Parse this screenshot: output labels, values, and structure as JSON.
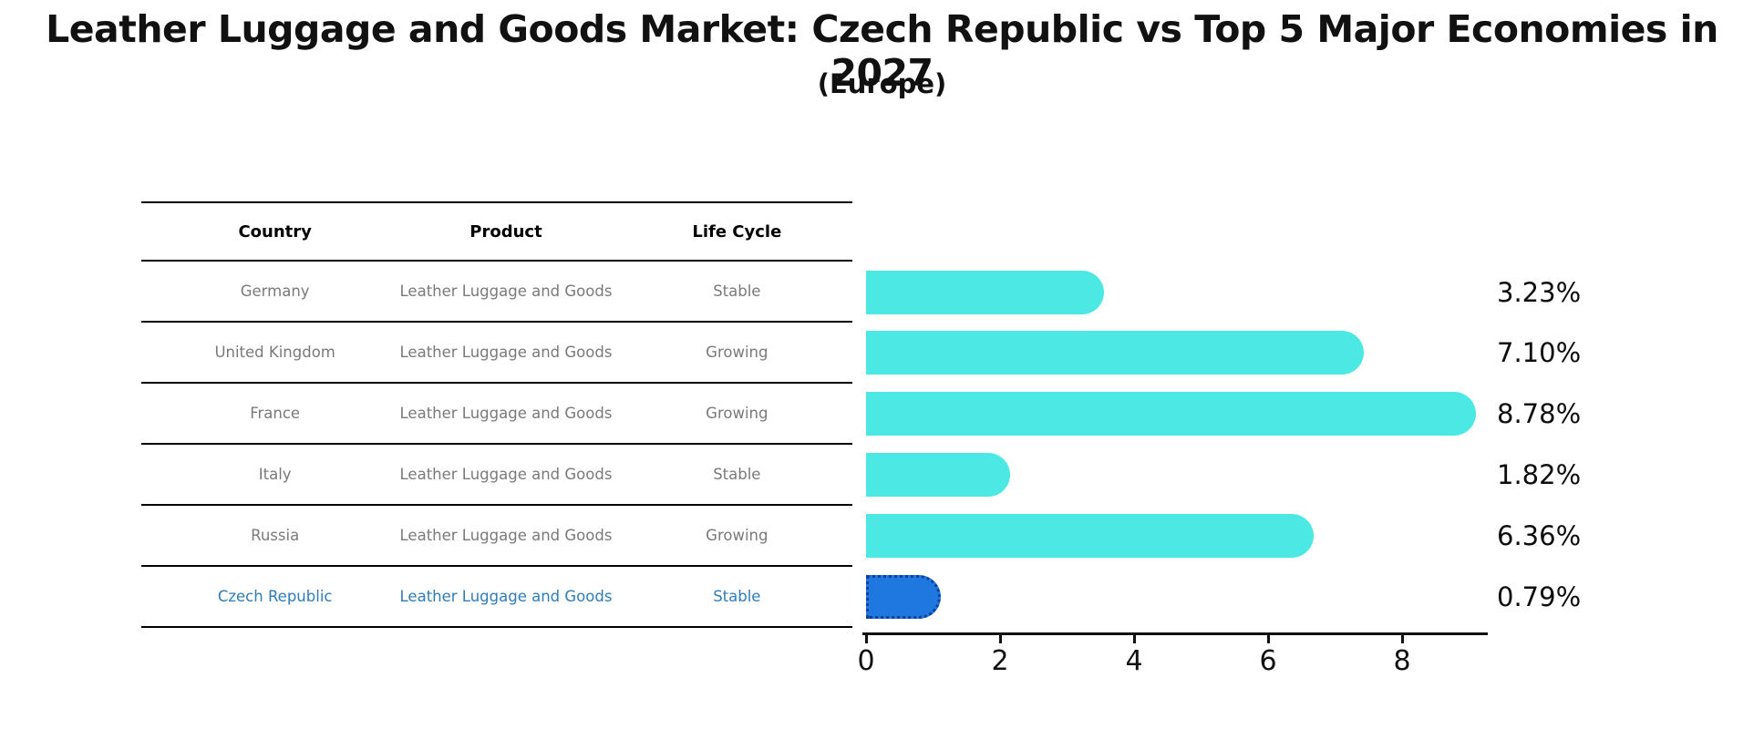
{
  "table": {
    "headers": [
      "Country",
      "Product",
      "Life Cycle"
    ],
    "rows": [
      {
        "country": "Germany",
        "product": "Leather Luggage and Goods",
        "life_cycle": "Stable",
        "highlight": false
      },
      {
        "country": "United Kingdom",
        "product": "Leather Luggage and Goods",
        "life_cycle": "Growing",
        "highlight": false
      },
      {
        "country": "France",
        "product": "Leather Luggage and Goods",
        "life_cycle": "Growing",
        "highlight": false
      },
      {
        "country": "Italy",
        "product": "Leather Luggage and Goods",
        "life_cycle": "Stable",
        "highlight": false
      },
      {
        "country": "Russia",
        "product": "Leather Luggage and Goods",
        "life_cycle": "Growing",
        "highlight": false
      },
      {
        "country": "Czech Republic",
        "product": "Leather Luggage and Goods",
        "life_cycle": "Stable",
        "highlight": true
      }
    ]
  },
  "chart_data": {
    "type": "bar",
    "orientation": "horizontal",
    "title": "Leather Luggage and Goods Market: Czech Republic vs Top 5 Major Economies in 2027",
    "subtitle": "(Europe)",
    "categories": [
      "Germany",
      "United Kingdom",
      "France",
      "Italy",
      "Russia",
      "Czech Republic"
    ],
    "values": [
      3.23,
      7.1,
      8.78,
      1.82,
      6.36,
      0.79
    ],
    "value_labels": [
      "3.23%",
      "7.10%",
      "8.78%",
      "1.82%",
      "6.36%",
      "0.79%"
    ],
    "x_ticks": [
      0,
      2,
      4,
      6,
      8
    ],
    "xlim": [
      0,
      9.3
    ],
    "grid": false,
    "bar_color": "#4BE8E4",
    "highlight": {
      "index": 5,
      "category": "Czech Republic",
      "color": "#1E78E0",
      "edge_color": "#123f9e",
      "edge_style": "dotted"
    },
    "text_colors": {
      "row_text": "#7a7a7a",
      "highlight_row_text": "#2f7cb8",
      "label_text": "#0d0d0d"
    }
  }
}
